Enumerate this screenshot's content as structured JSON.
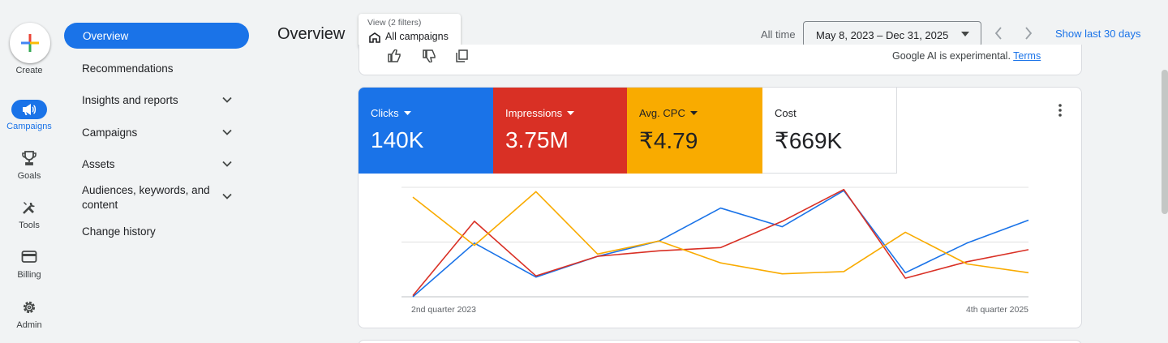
{
  "rail": {
    "create_label": "Create",
    "items": [
      {
        "label": "Campaigns",
        "icon": "megaphone-icon",
        "active": true
      },
      {
        "label": "Goals",
        "icon": "trophy-icon"
      },
      {
        "label": "Tools",
        "icon": "tools-icon"
      },
      {
        "label": "Billing",
        "icon": "credit-card-icon"
      },
      {
        "label": "Admin",
        "icon": "gear-icon"
      }
    ]
  },
  "nav": {
    "items": [
      {
        "label": "Overview",
        "active": true
      },
      {
        "label": "Recommendations"
      },
      {
        "label": "Insights and reports",
        "expandable": true
      },
      {
        "label": "Campaigns",
        "expandable": true
      },
      {
        "label": "Assets",
        "expandable": true
      },
      {
        "label": "Audiences, keywords, and",
        "label2": "content",
        "expandable": true
      },
      {
        "label": "Change history"
      }
    ]
  },
  "header": {
    "title": "Overview",
    "view_sub": "View (2 filters)",
    "view_main": "All campaigns",
    "all_time": "All time",
    "date_range": "May 8, 2023 – Dec 31, 2025",
    "show_last": "Show last 30 days"
  },
  "ai_card": {
    "text": "Google AI is experimental.",
    "link": "Terms"
  },
  "metrics": [
    {
      "label": "Clicks",
      "value": "140K",
      "color": "#1a73e8"
    },
    {
      "label": "Impressions",
      "value": "3.75M",
      "color": "#d93025"
    },
    {
      "label": "Avg. CPC",
      "value": "₹4.79",
      "color": "#f9ab00"
    },
    {
      "label": "Cost",
      "value": "₹669K",
      "color": "#ffffff"
    }
  ],
  "chart_data": {
    "type": "line",
    "x_start_label": "2nd quarter 2023",
    "x_end_label": "4th quarter 2025",
    "grid": true,
    "ylim": [
      0,
      1
    ],
    "series": [
      {
        "name": "Clicks",
        "color": "#1a73e8",
        "values": [
          0.0,
          0.49,
          0.18,
          0.37,
          0.51,
          0.81,
          0.64,
          0.97,
          0.22,
          0.49,
          0.7
        ]
      },
      {
        "name": "Impressions",
        "color": "#d93025",
        "values": [
          0.01,
          0.69,
          0.19,
          0.37,
          0.42,
          0.45,
          0.69,
          0.98,
          0.17,
          0.32,
          0.43
        ]
      },
      {
        "name": "Avg. CPC",
        "color": "#f9ab00",
        "values": [
          0.91,
          0.47,
          0.96,
          0.39,
          0.51,
          0.31,
          0.21,
          0.23,
          0.59,
          0.3,
          0.22
        ]
      }
    ]
  }
}
